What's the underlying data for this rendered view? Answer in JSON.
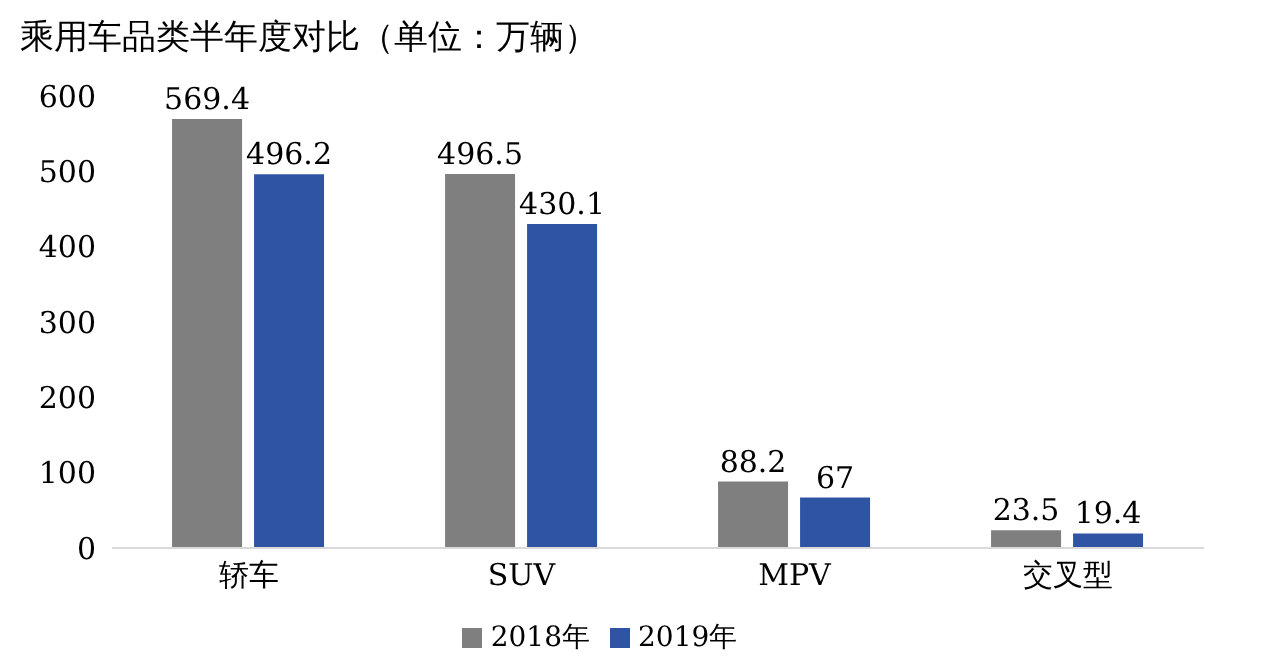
{
  "chart_data": {
    "type": "bar",
    "title": "乘用车品类半年度对比（单位：万辆）",
    "categories": [
      "轿车",
      "SUV",
      "MPV",
      "交叉型"
    ],
    "series": [
      {
        "name": "2018年",
        "color": "#7f7f7f",
        "values": [
          569.4,
          496.5,
          88.2,
          23.5
        ]
      },
      {
        "name": "2019年",
        "color": "#2f54a4",
        "values": [
          496.2,
          430.1,
          67,
          19.4
        ]
      }
    ],
    "ylim": [
      0,
      600
    ],
    "yticks": [
      0,
      100,
      200,
      300,
      400,
      500,
      600
    ],
    "grid": false,
    "legend": "bottom",
    "data_labels": true
  }
}
